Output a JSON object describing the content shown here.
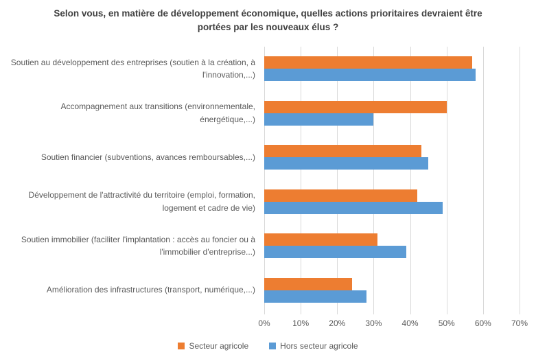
{
  "chart_data": {
    "type": "bar",
    "orientation": "horizontal",
    "title": "Selon vous, en matière de développement économique, quelles actions prioritaires devraient être portées par les nouveaux élus ?",
    "categories": [
      "Soutien au développement des entreprises (soutien à la création, à l'innovation,...)",
      "Accompagnement aux transitions (environnementale, énergétique,...)",
      "Soutien financier (subventions, avances remboursables,...)",
      "Développement de l'attractivité du territoire (emploi, formation, logement et cadre de vie)",
      "Soutien immobilier (faciliter l'implantation : accès au foncier ou à l'immobilier d'entreprise...)",
      "Amélioration des infrastructures (transport, numérique,...)"
    ],
    "series": [
      {
        "name": "Secteur agricole",
        "color": "#ED7D31",
        "values": [
          57,
          50,
          43,
          42,
          31,
          24
        ]
      },
      {
        "name": "Hors secteur agricole",
        "color": "#5B9BD5",
        "values": [
          58,
          30,
          45,
          49,
          39,
          28
        ]
      }
    ],
    "xlabel": "",
    "ylabel": "",
    "x_ticks": [
      "0%",
      "10%",
      "20%",
      "30%",
      "40%",
      "50%",
      "60%",
      "70%"
    ],
    "xlim": [
      0,
      70
    ],
    "grid": true,
    "legend_position": "bottom",
    "colors": {
      "title_text": "#404040",
      "axis_text": "#595959",
      "gridline": "#D9D9D9",
      "background": "#FFFFFF"
    }
  }
}
